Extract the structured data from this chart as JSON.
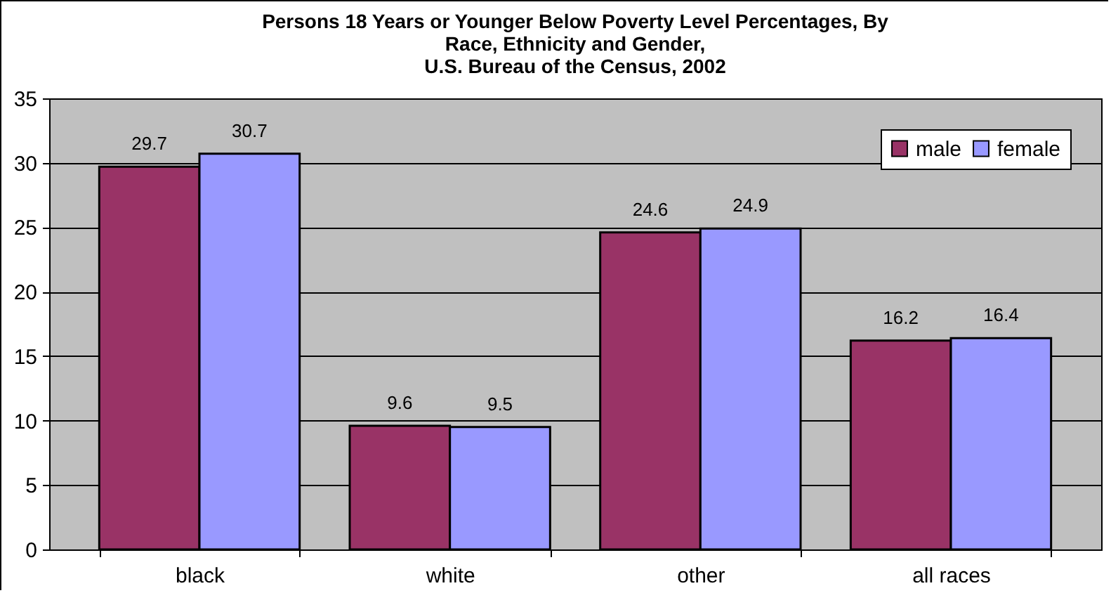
{
  "chart_data": {
    "type": "bar",
    "title": "Persons 18 Years or Younger Below Poverty Level Percentages, By\nRace, Ethnicity and Gender,\nU.S. Bureau of the Census, 2002",
    "categories": [
      "black",
      "white",
      "other",
      "all races"
    ],
    "series": [
      {
        "name": "male",
        "color": "#993366",
        "values": [
          29.7,
          9.6,
          24.6,
          16.2
        ]
      },
      {
        "name": "female",
        "color": "#9999ff",
        "values": [
          30.7,
          9.5,
          24.9,
          16.4
        ]
      }
    ],
    "ylim": [
      0,
      35
    ],
    "yticks": [
      0,
      5,
      10,
      15,
      20,
      25,
      30,
      35
    ],
    "grid": "y",
    "legend": "top right",
    "data_labels": true
  }
}
